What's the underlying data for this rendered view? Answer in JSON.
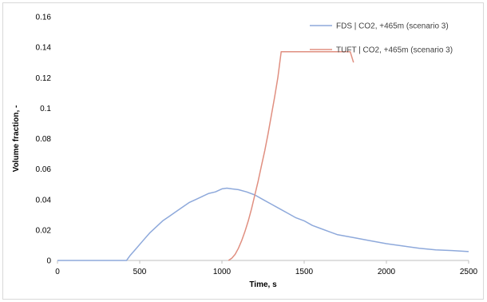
{
  "chart_data": {
    "type": "line",
    "title": "",
    "xlabel": "Time, s",
    "ylabel": "Volume fraction, -",
    "xlim": [
      0,
      2500
    ],
    "ylim": [
      0,
      0.16
    ],
    "xticks": [
      0,
      500,
      1000,
      1500,
      2000,
      2500
    ],
    "xtick_labels": [
      "0",
      "500",
      "1000",
      "1500",
      "2000",
      "2500"
    ],
    "yticks": [
      0,
      0.02,
      0.04,
      0.06,
      0.08,
      0.1,
      0.12,
      0.14,
      0.16
    ],
    "ytick_labels": [
      "0",
      "0.02",
      "0.04",
      "0.06",
      "0.08",
      "0.1",
      "0.12",
      "0.14",
      "0.16"
    ],
    "grid": false,
    "legend_position": "top-right",
    "series": [
      {
        "name": "FDS | CO2, +465m (scenario 3)",
        "color": "#8ea9db",
        "x": [
          0,
          420,
          440,
          480,
          520,
          560,
          600,
          640,
          680,
          720,
          760,
          800,
          840,
          880,
          920,
          960,
          1000,
          1030,
          1060,
          1100,
          1150,
          1200,
          1250,
          1300,
          1350,
          1400,
          1450,
          1500,
          1550,
          1600,
          1650,
          1700,
          1750,
          1800,
          1900,
          2000,
          2100,
          2200,
          2300,
          2400,
          2500
        ],
        "y": [
          0,
          0,
          0.003,
          0.008,
          0.013,
          0.018,
          0.022,
          0.026,
          0.029,
          0.032,
          0.035,
          0.038,
          0.04,
          0.042,
          0.044,
          0.045,
          0.047,
          0.0475,
          0.047,
          0.0465,
          0.045,
          0.043,
          0.04,
          0.037,
          0.034,
          0.031,
          0.028,
          0.026,
          0.023,
          0.021,
          0.019,
          0.017,
          0.016,
          0.015,
          0.013,
          0.011,
          0.0095,
          0.008,
          0.007,
          0.0065,
          0.0058
        ]
      },
      {
        "name": "TUFT | CO2, +465m (scenario 3)",
        "color": "#e08f80",
        "x": [
          1040,
          1060,
          1080,
          1100,
          1120,
          1140,
          1160,
          1180,
          1200,
          1220,
          1240,
          1260,
          1280,
          1300,
          1320,
          1340,
          1360,
          1380,
          1400,
          1500,
          1600,
          1700,
          1780,
          1800
        ],
        "y": [
          0,
          0.0015,
          0.004,
          0.008,
          0.013,
          0.019,
          0.026,
          0.034,
          0.043,
          0.052,
          0.062,
          0.072,
          0.083,
          0.095,
          0.107,
          0.12,
          0.137,
          0.137,
          0.137,
          0.137,
          0.137,
          0.137,
          0.137,
          0.13
        ]
      }
    ]
  }
}
